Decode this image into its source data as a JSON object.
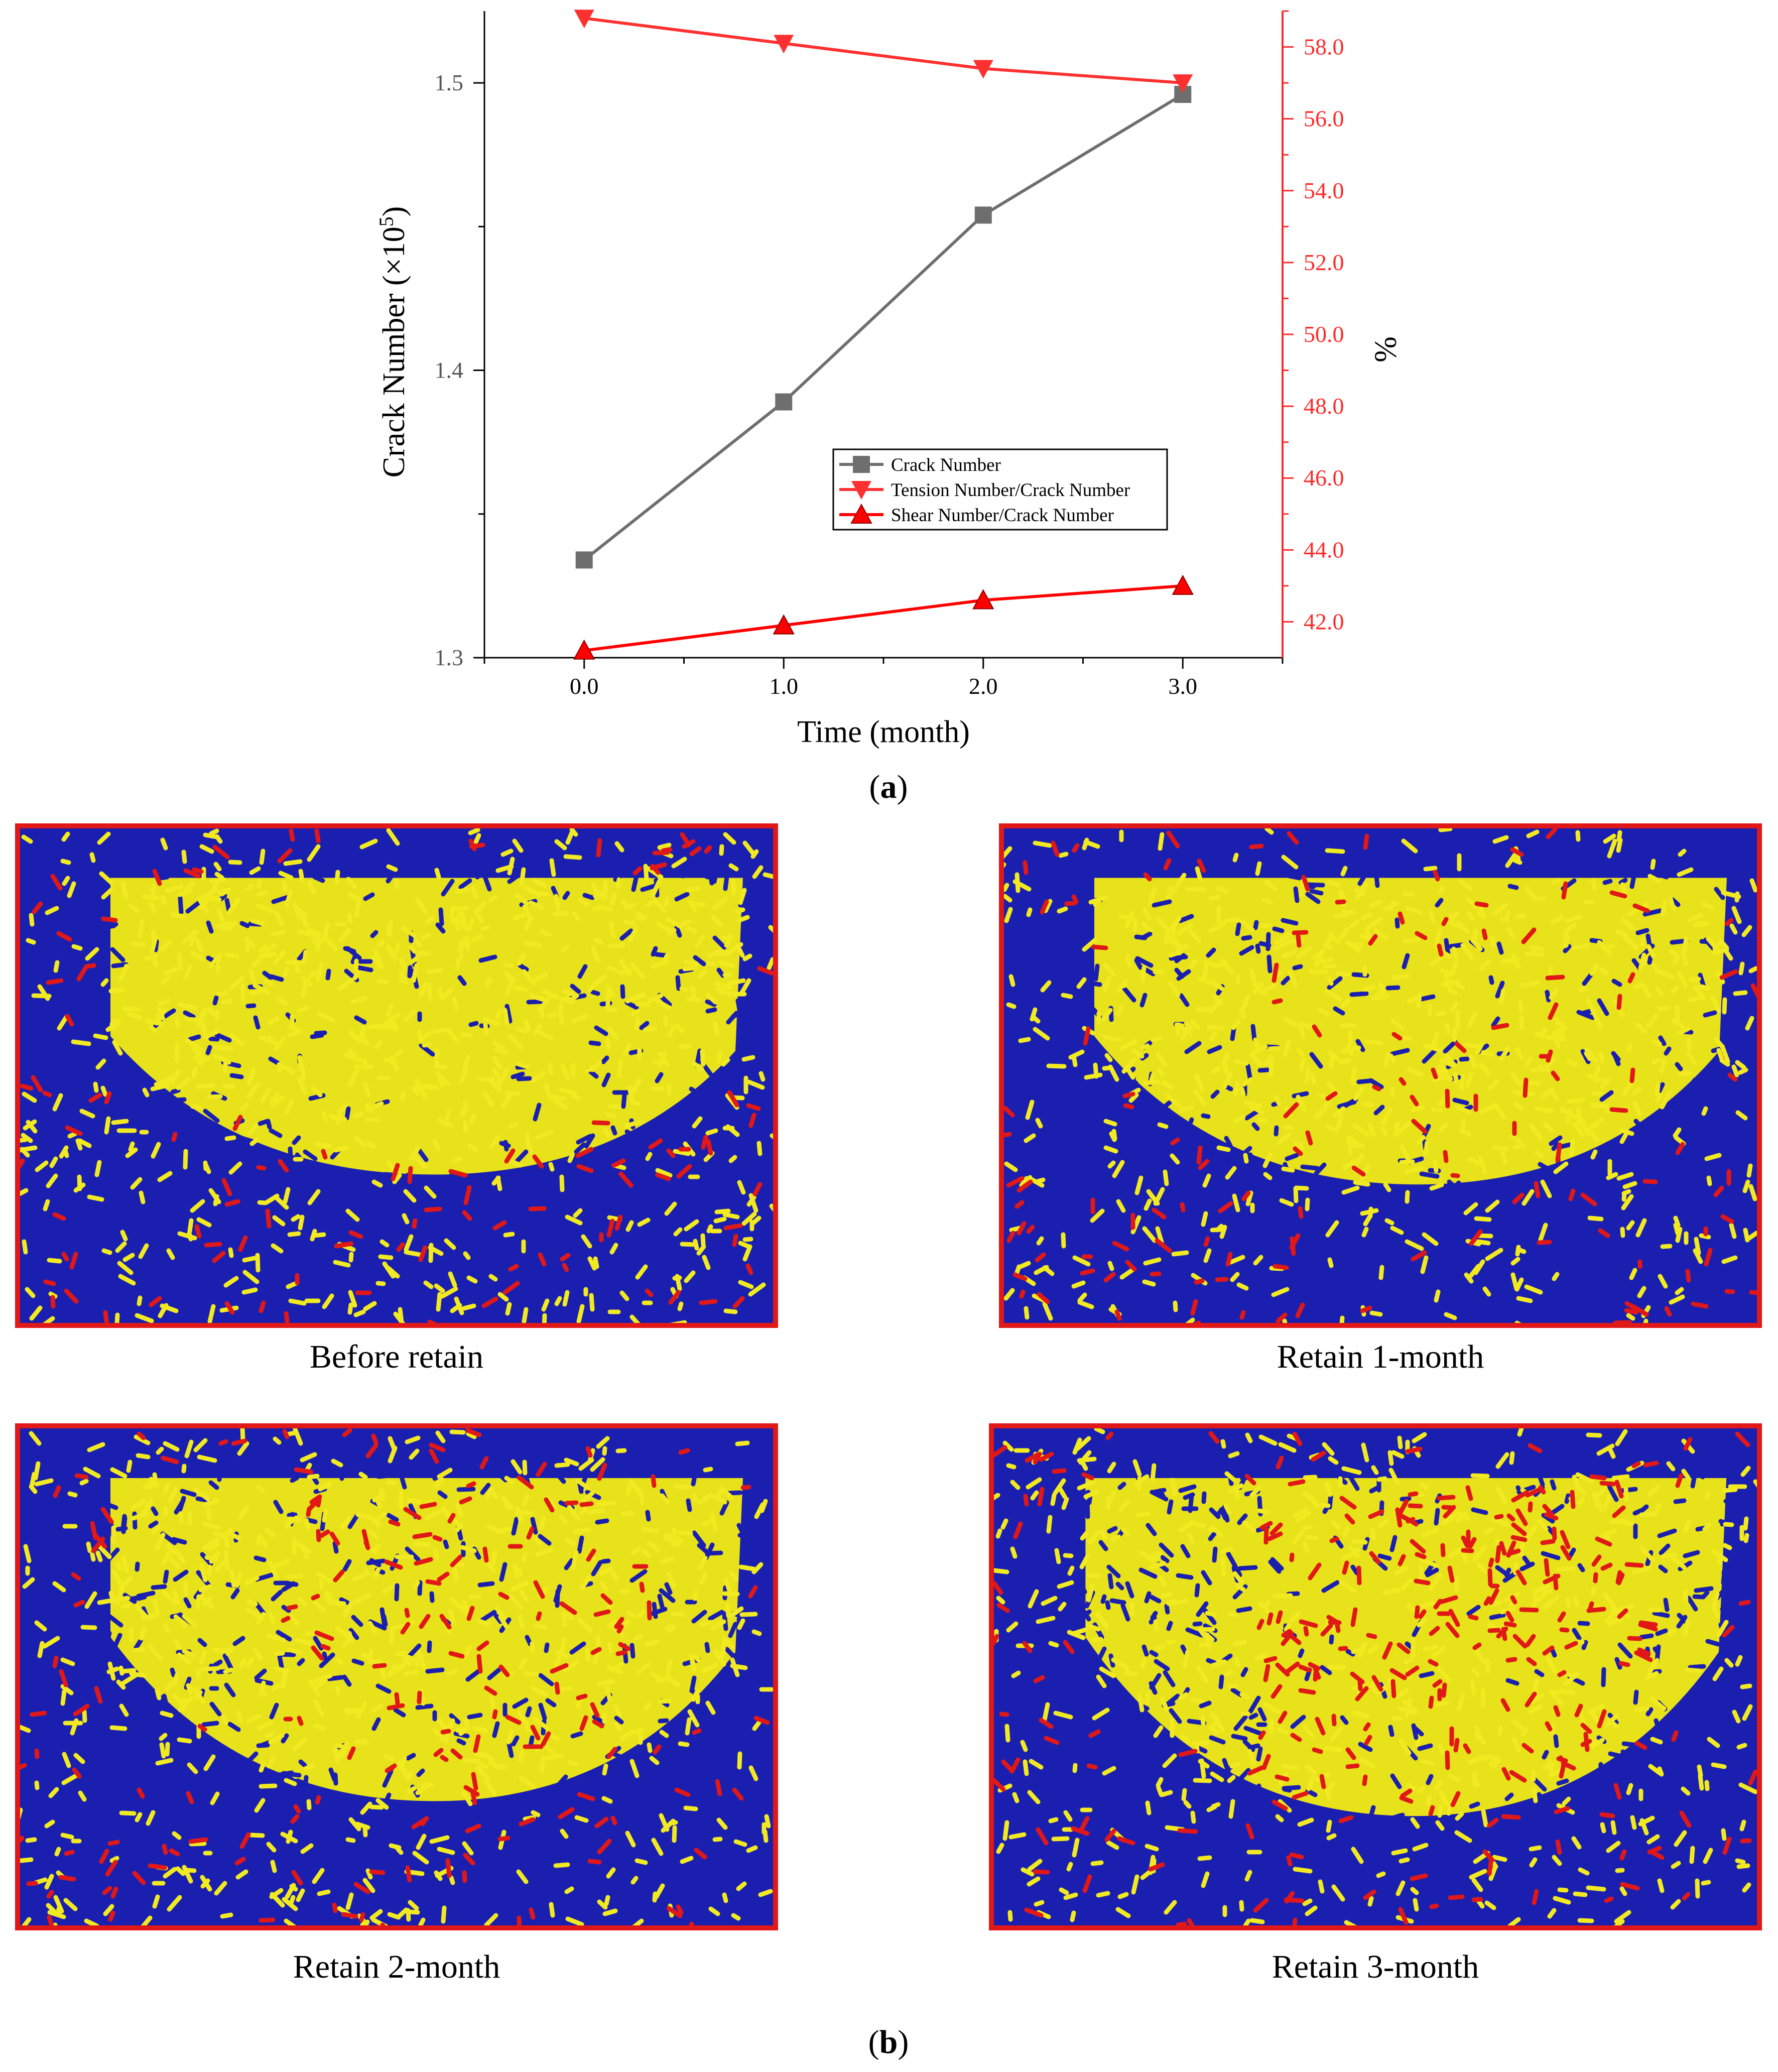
{
  "chart_data": {
    "type": "line",
    "x": [
      0.0,
      1.0,
      2.0,
      3.0
    ],
    "xlabel": "Time (month)",
    "xlim": [
      -0.5,
      3.5
    ],
    "xticks": [
      "0.0",
      "1.0",
      "2.0",
      "3.0"
    ],
    "ylabel_left_prefix": "Crack Number (×10",
    "ylabel_left_exp": "5",
    "ylabel_left_suffix": ")",
    "ylim_left": [
      1.3,
      1.525
    ],
    "yticks_left": [
      "1.3",
      "1.4",
      "1.5"
    ],
    "ylabel_right": "%",
    "ylim_right": [
      41.0,
      59.0
    ],
    "yticks_right": [
      "42.0",
      "44.0",
      "46.0",
      "48.0",
      "50.0",
      "52.0",
      "54.0",
      "56.0",
      "58.0"
    ],
    "series": [
      {
        "name": "Crack Number",
        "axis": "left",
        "color": "#6e6e6e",
        "marker": "square",
        "values": [
          1.334,
          1.389,
          1.454,
          1.496
        ]
      },
      {
        "name": "Tension Number/Crack Number",
        "axis": "right",
        "color": "#ff3030",
        "marker": "triangle-down",
        "values": [
          58.8,
          58.1,
          57.4,
          57.0
        ]
      },
      {
        "name": "Shear Number/Crack Number",
        "axis": "right",
        "color": "#ff0000",
        "marker": "triangle-up",
        "values": [
          41.2,
          41.9,
          42.6,
          43.0
        ]
      }
    ],
    "legend_position": "center-bottom"
  },
  "labels": {
    "panel_a": {
      "open": "(",
      "letter": "a",
      "close": ")"
    },
    "panel_b": {
      "open": "(",
      "letter": "b",
      "close": ")"
    }
  },
  "images": [
    {
      "caption": "Before retain"
    },
    {
      "caption": "Retain 1-month"
    },
    {
      "caption": "Retain 2-month"
    },
    {
      "caption": "Retain 3-month"
    }
  ],
  "colors": {
    "tension": "#e01818",
    "shear": "#1a1fb0",
    "intact": "#e8e21a"
  }
}
